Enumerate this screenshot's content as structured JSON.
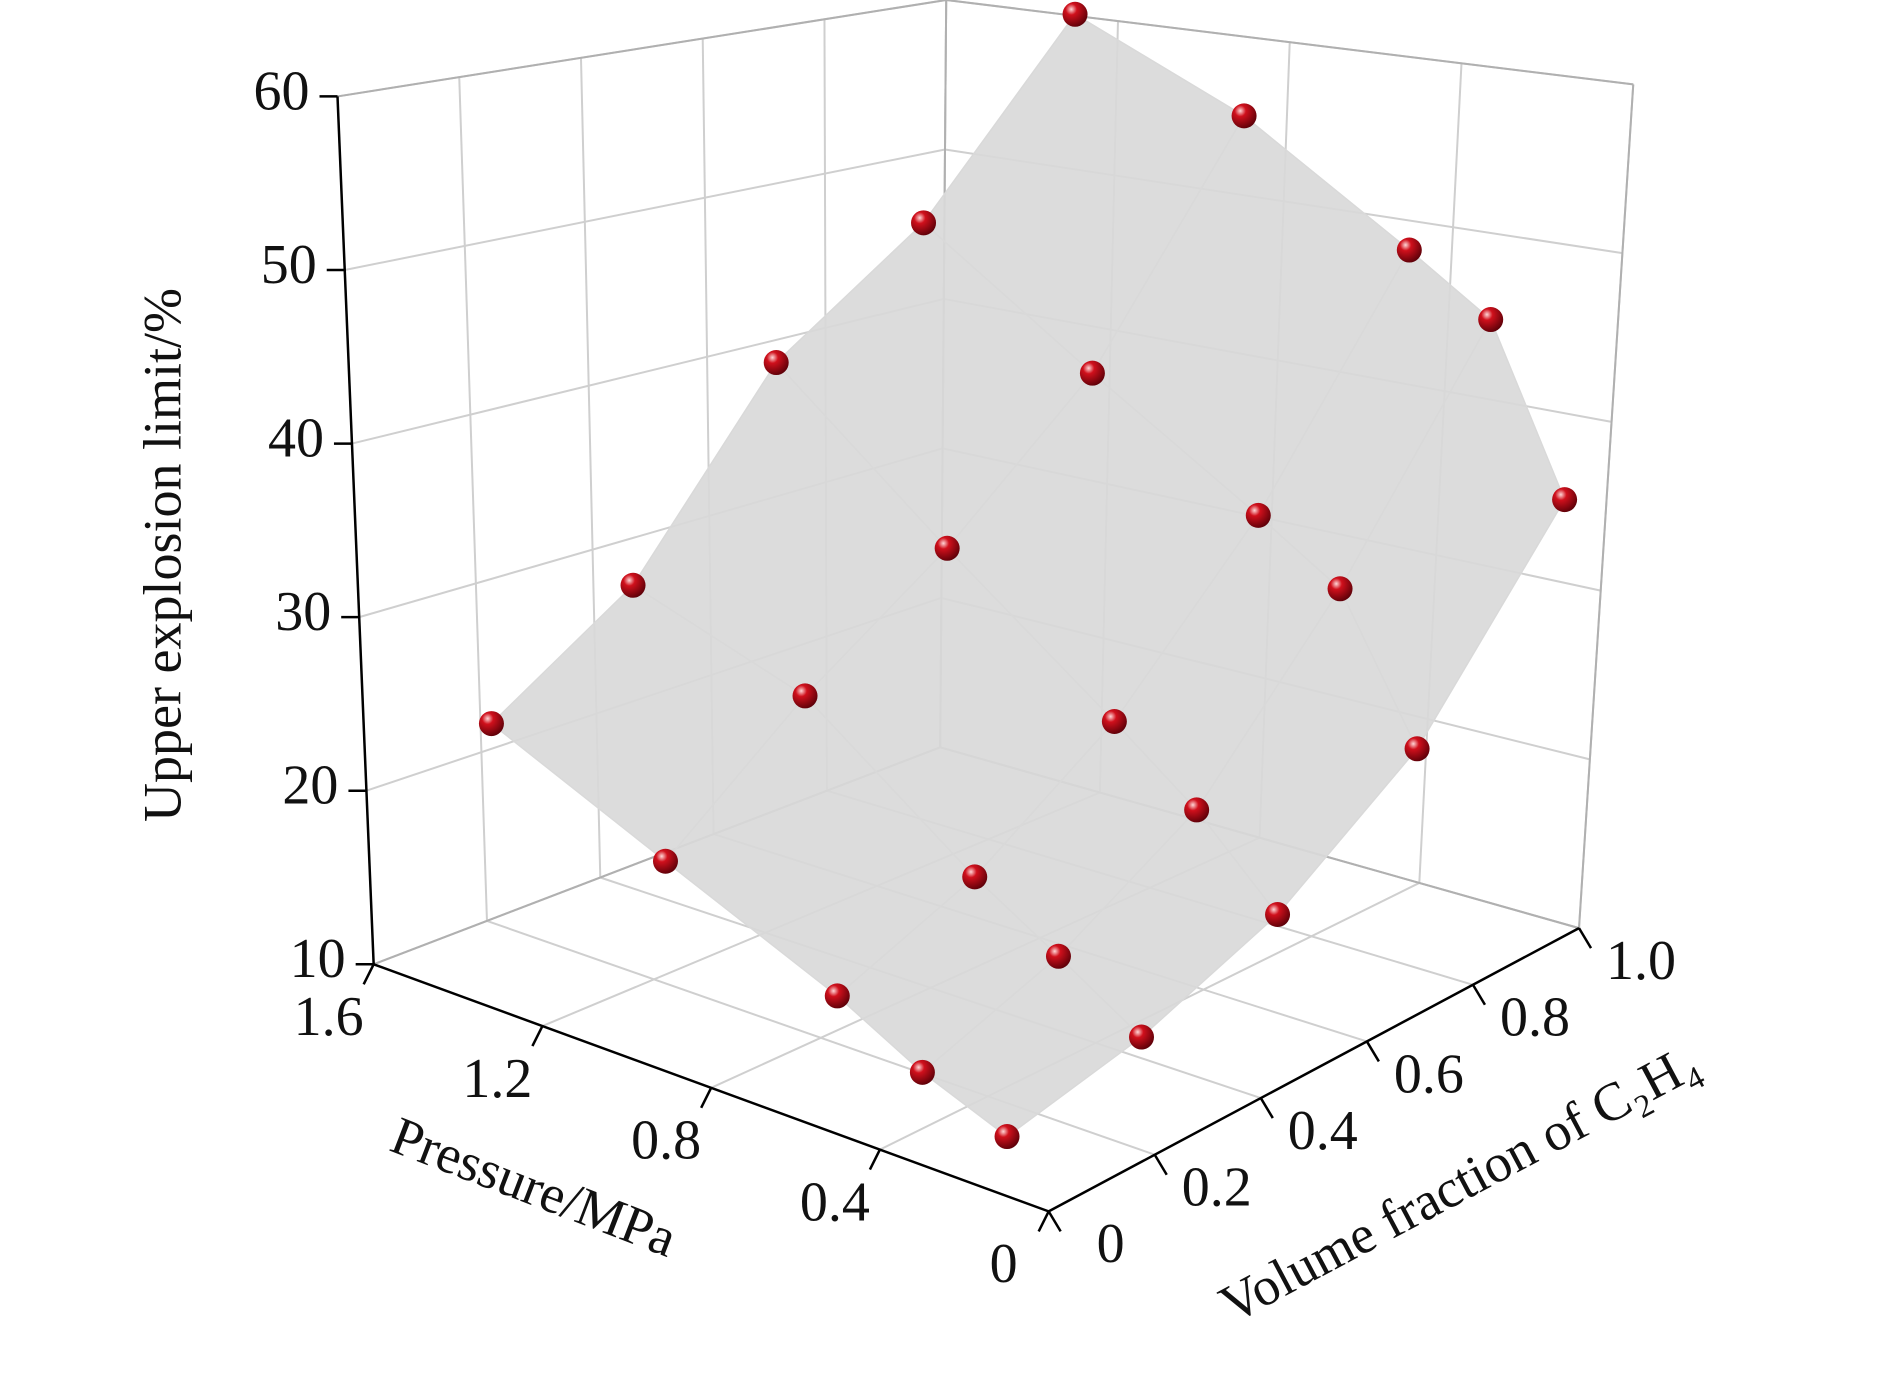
{
  "chart_data": {
    "type": "scatter3d",
    "xlabel": "Volume fraction of C₂H₄",
    "ylabel": "Pressure/MPa",
    "zlabel": "Upper explosion limit/%",
    "xlim": [
      0,
      1
    ],
    "ylim": [
      0,
      1.6
    ],
    "zlim": [
      10,
      60
    ],
    "xticks": [
      0,
      0.2,
      0.4,
      0.6,
      0.8,
      {
        "value": 1,
        "label": "1.0"
      }
    ],
    "yticks": [
      0,
      0.4,
      0.8,
      1.2,
      1.6
    ],
    "zticks": [
      10,
      20,
      30,
      40,
      50,
      60
    ],
    "grid": true,
    "color": "#d0101c",
    "surface_color": "#d9d9d9",
    "x": [
      0,
      0.25,
      0.5,
      0.75,
      1,
      0,
      0.25,
      0.5,
      0.75,
      1,
      0,
      0.25,
      0.5,
      0.75,
      1,
      0,
      0.25,
      0.5,
      0.75,
      1,
      0,
      0.25,
      0.5,
      0.75,
      1
    ],
    "y": [
      0.1,
      0.1,
      0.1,
      0.1,
      0.1,
      0.3,
      0.3,
      0.3,
      0.3,
      0.3,
      0.5,
      0.5,
      0.5,
      0.5,
      0.5,
      0.9,
      0.9,
      0.9,
      0.9,
      0.9,
      1.3,
      1.3,
      1.3,
      1.3,
      1.3
    ],
    "z": [
      13.1,
      14.8,
      17.9,
      23.7,
      34.9,
      14.9,
      17.7,
      22.4,
      31.8,
      44.8,
      17.4,
      20.6,
      26.1,
      35.0,
      48.2,
      21.6,
      27.9,
      33.6,
      41.4,
      55.0,
      26.2,
      31.5,
      42.3,
      48.7,
      60.1
    ]
  }
}
